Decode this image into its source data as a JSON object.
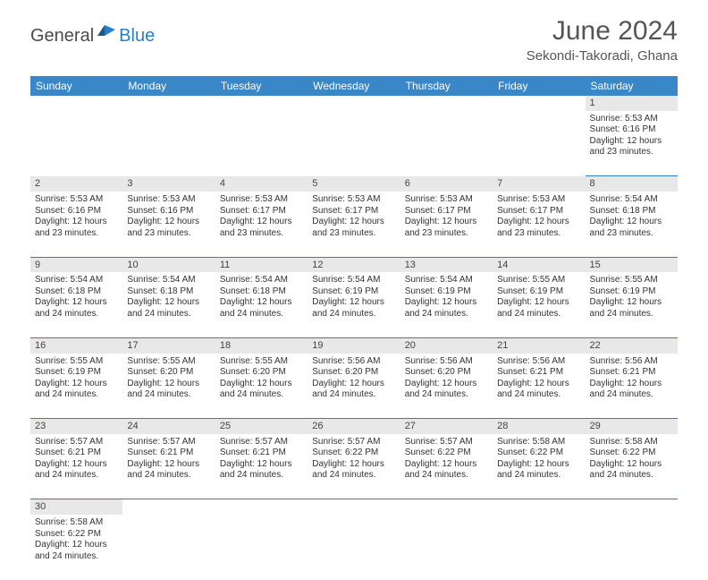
{
  "brand": {
    "general": "General",
    "blue": "Blue"
  },
  "title": "June 2024",
  "location": "Sekondi-Takoradi, Ghana",
  "colors": {
    "header_bg": "#3a87c8",
    "header_text": "#ffffff",
    "daynum_bg": "#e8e8e8",
    "border": "#2a7fc9",
    "brand_gray": "#4a4a4a",
    "brand_blue": "#2a7fc9",
    "body_text": "#333333"
  },
  "weekdays": [
    "Sunday",
    "Monday",
    "Tuesday",
    "Wednesday",
    "Thursday",
    "Friday",
    "Saturday"
  ],
  "cells": [
    null,
    null,
    null,
    null,
    null,
    null,
    {
      "n": "1",
      "sr": "5:53 AM",
      "ss": "6:16 PM",
      "d1": "12 hours",
      "d2": "and 23 minutes."
    },
    {
      "n": "2",
      "sr": "5:53 AM",
      "ss": "6:16 PM",
      "d1": "12 hours",
      "d2": "and 23 minutes."
    },
    {
      "n": "3",
      "sr": "5:53 AM",
      "ss": "6:16 PM",
      "d1": "12 hours",
      "d2": "and 23 minutes."
    },
    {
      "n": "4",
      "sr": "5:53 AM",
      "ss": "6:17 PM",
      "d1": "12 hours",
      "d2": "and 23 minutes."
    },
    {
      "n": "5",
      "sr": "5:53 AM",
      "ss": "6:17 PM",
      "d1": "12 hours",
      "d2": "and 23 minutes."
    },
    {
      "n": "6",
      "sr": "5:53 AM",
      "ss": "6:17 PM",
      "d1": "12 hours",
      "d2": "and 23 minutes."
    },
    {
      "n": "7",
      "sr": "5:53 AM",
      "ss": "6:17 PM",
      "d1": "12 hours",
      "d2": "and 23 minutes."
    },
    {
      "n": "8",
      "sr": "5:54 AM",
      "ss": "6:18 PM",
      "d1": "12 hours",
      "d2": "and 23 minutes."
    },
    {
      "n": "9",
      "sr": "5:54 AM",
      "ss": "6:18 PM",
      "d1": "12 hours",
      "d2": "and 24 minutes."
    },
    {
      "n": "10",
      "sr": "5:54 AM",
      "ss": "6:18 PM",
      "d1": "12 hours",
      "d2": "and 24 minutes."
    },
    {
      "n": "11",
      "sr": "5:54 AM",
      "ss": "6:18 PM",
      "d1": "12 hours",
      "d2": "and 24 minutes."
    },
    {
      "n": "12",
      "sr": "5:54 AM",
      "ss": "6:19 PM",
      "d1": "12 hours",
      "d2": "and 24 minutes."
    },
    {
      "n": "13",
      "sr": "5:54 AM",
      "ss": "6:19 PM",
      "d1": "12 hours",
      "d2": "and 24 minutes."
    },
    {
      "n": "14",
      "sr": "5:55 AM",
      "ss": "6:19 PM",
      "d1": "12 hours",
      "d2": "and 24 minutes."
    },
    {
      "n": "15",
      "sr": "5:55 AM",
      "ss": "6:19 PM",
      "d1": "12 hours",
      "d2": "and 24 minutes."
    },
    {
      "n": "16",
      "sr": "5:55 AM",
      "ss": "6:19 PM",
      "d1": "12 hours",
      "d2": "and 24 minutes."
    },
    {
      "n": "17",
      "sr": "5:55 AM",
      "ss": "6:20 PM",
      "d1": "12 hours",
      "d2": "and 24 minutes."
    },
    {
      "n": "18",
      "sr": "5:55 AM",
      "ss": "6:20 PM",
      "d1": "12 hours",
      "d2": "and 24 minutes."
    },
    {
      "n": "19",
      "sr": "5:56 AM",
      "ss": "6:20 PM",
      "d1": "12 hours",
      "d2": "and 24 minutes."
    },
    {
      "n": "20",
      "sr": "5:56 AM",
      "ss": "6:20 PM",
      "d1": "12 hours",
      "d2": "and 24 minutes."
    },
    {
      "n": "21",
      "sr": "5:56 AM",
      "ss": "6:21 PM",
      "d1": "12 hours",
      "d2": "and 24 minutes."
    },
    {
      "n": "22",
      "sr": "5:56 AM",
      "ss": "6:21 PM",
      "d1": "12 hours",
      "d2": "and 24 minutes."
    },
    {
      "n": "23",
      "sr": "5:57 AM",
      "ss": "6:21 PM",
      "d1": "12 hours",
      "d2": "and 24 minutes."
    },
    {
      "n": "24",
      "sr": "5:57 AM",
      "ss": "6:21 PM",
      "d1": "12 hours",
      "d2": "and 24 minutes."
    },
    {
      "n": "25",
      "sr": "5:57 AM",
      "ss": "6:21 PM",
      "d1": "12 hours",
      "d2": "and 24 minutes."
    },
    {
      "n": "26",
      "sr": "5:57 AM",
      "ss": "6:22 PM",
      "d1": "12 hours",
      "d2": "and 24 minutes."
    },
    {
      "n": "27",
      "sr": "5:57 AM",
      "ss": "6:22 PM",
      "d1": "12 hours",
      "d2": "and 24 minutes."
    },
    {
      "n": "28",
      "sr": "5:58 AM",
      "ss": "6:22 PM",
      "d1": "12 hours",
      "d2": "and 24 minutes."
    },
    {
      "n": "29",
      "sr": "5:58 AM",
      "ss": "6:22 PM",
      "d1": "12 hours",
      "d2": "and 24 minutes."
    },
    {
      "n": "30",
      "sr": "5:58 AM",
      "ss": "6:22 PM",
      "d1": "12 hours",
      "d2": "and 24 minutes."
    },
    null,
    null,
    null,
    null,
    null,
    null
  ],
  "labels": {
    "sunrise": "Sunrise: ",
    "sunset": "Sunset: ",
    "daylight": "Daylight: "
  }
}
